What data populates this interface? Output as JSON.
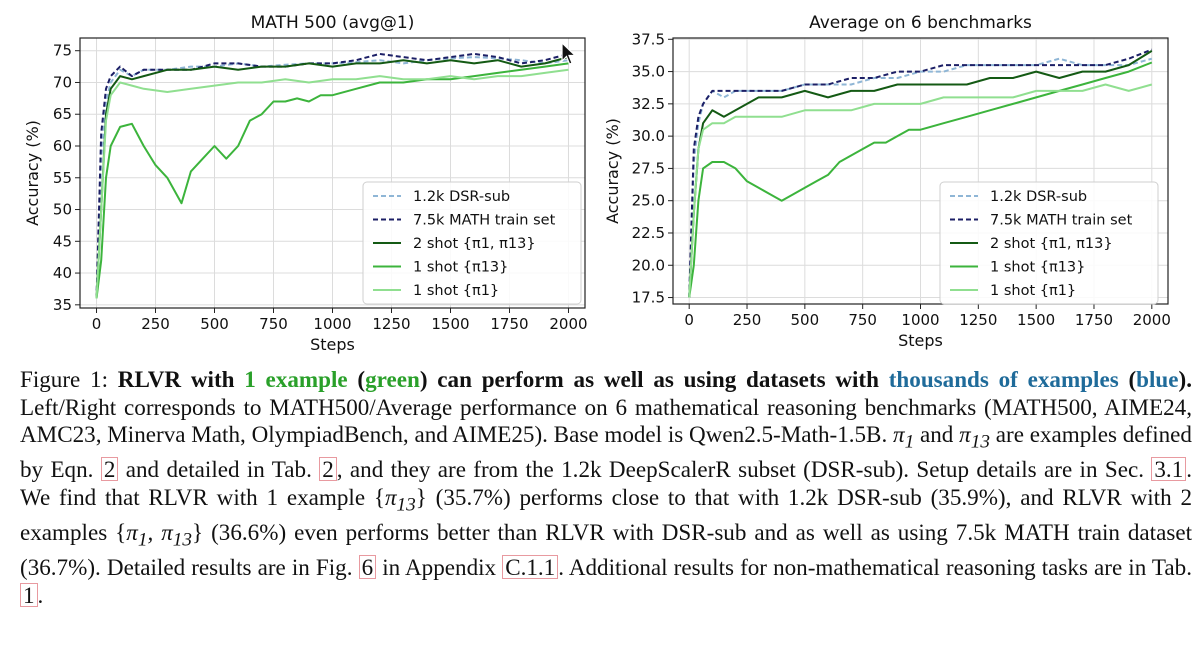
{
  "chart_data": [
    {
      "type": "line",
      "title": "MATH 500 (avg@1)",
      "xlabel": "Steps",
      "ylabel": "Accuracy (%)",
      "xlim": [
        -70,
        2070
      ],
      "ylim": [
        34.5,
        77
      ],
      "xticks": [
        0,
        250,
        500,
        750,
        1000,
        1250,
        1500,
        1750,
        2000
      ],
      "yticks": [
        35,
        40,
        45,
        50,
        55,
        60,
        65,
        70,
        75
      ],
      "grid": true,
      "legend": "lower-right",
      "series": [
        {
          "name": "1.2k DSR-sub",
          "color": "#8fb6d6",
          "dash": "dashed",
          "x": [
            0,
            20,
            40,
            60,
            100,
            150,
            200,
            300,
            400,
            500,
            600,
            700,
            800,
            900,
            1000,
            1100,
            1200,
            1300,
            1400,
            1500,
            1600,
            1700,
            1800,
            1900,
            2000
          ],
          "y": [
            36,
            58,
            67,
            70,
            72,
            71,
            72,
            72,
            72.5,
            72.5,
            73,
            72.5,
            72.8,
            73,
            73,
            73.2,
            73.5,
            73,
            73.5,
            73.8,
            74,
            73.8,
            73.5,
            73,
            73.5
          ]
        },
        {
          "name": "7.5k MATH train set",
          "color": "#1c1f66",
          "dash": "dashed",
          "x": [
            0,
            20,
            40,
            60,
            100,
            150,
            200,
            300,
            400,
            500,
            600,
            700,
            800,
            900,
            1000,
            1100,
            1200,
            1300,
            1400,
            1500,
            1600,
            1700,
            1800,
            1900,
            2000
          ],
          "y": [
            36,
            62,
            69,
            71,
            72.5,
            71,
            72,
            72,
            72,
            73,
            73,
            72.5,
            72.5,
            73,
            73,
            73.5,
            74.5,
            74,
            73.5,
            74,
            74.5,
            74,
            73,
            73.5,
            74.5
          ]
        },
        {
          "name": "2 shot {π1, π13}",
          "color": "#145a14",
          "dash": "solid",
          "x": [
            0,
            20,
            40,
            60,
            100,
            150,
            200,
            300,
            400,
            500,
            600,
            700,
            800,
            900,
            1000,
            1100,
            1200,
            1300,
            1400,
            1500,
            1600,
            1700,
            1800,
            1900,
            2000
          ],
          "y": [
            36,
            50,
            65,
            69,
            71,
            70.5,
            71,
            72,
            72,
            72.5,
            72,
            72.5,
            72.5,
            73,
            72.5,
            73,
            73,
            73.5,
            73,
            73.5,
            73,
            73.5,
            72.5,
            73,
            74
          ]
        },
        {
          "name": "1 shot {π13}",
          "color": "#3cb43c",
          "dash": "solid",
          "x": [
            0,
            20,
            40,
            60,
            100,
            150,
            200,
            250,
            300,
            360,
            400,
            450,
            500,
            550,
            600,
            650,
            700,
            750,
            800,
            850,
            900,
            950,
            1000,
            1100,
            1200,
            1300,
            1400,
            1500,
            1600,
            1700,
            1800,
            1900,
            2000
          ],
          "y": [
            36,
            42,
            55,
            60,
            63,
            63.5,
            60,
            57,
            55,
            51,
            56,
            58,
            60,
            58,
            60,
            64,
            65,
            67,
            67,
            67.5,
            67,
            68,
            68,
            69,
            70,
            70,
            70.5,
            70.5,
            71,
            71.5,
            72,
            72.5,
            73
          ]
        },
        {
          "name": "1 shot {π1}",
          "color": "#90df90",
          "dash": "solid",
          "x": [
            0,
            20,
            40,
            60,
            100,
            150,
            200,
            300,
            400,
            500,
            600,
            700,
            800,
            900,
            1000,
            1100,
            1200,
            1300,
            1400,
            1500,
            1600,
            1700,
            1800,
            1900,
            2000
          ],
          "y": [
            36,
            50,
            64,
            68,
            70,
            69.5,
            69,
            68.5,
            69,
            69.5,
            70,
            70,
            70.5,
            70,
            70.5,
            70.5,
            71,
            70.5,
            70.5,
            71,
            70.5,
            71,
            71,
            71.5,
            72
          ]
        }
      ]
    },
    {
      "type": "line",
      "title": "Average on 6 benchmarks",
      "xlabel": "Steps",
      "ylabel": "Accuracy (%)",
      "xlim": [
        -70,
        2070
      ],
      "ylim": [
        17,
        37.6
      ],
      "xticks": [
        0,
        250,
        500,
        750,
        1000,
        1250,
        1500,
        1750,
        2000
      ],
      "yticks": [
        17.5,
        20.0,
        22.5,
        25.0,
        27.5,
        30.0,
        32.5,
        35.0,
        37.5
      ],
      "grid": true,
      "legend": "lower-right",
      "series": [
        {
          "name": "1.2k DSR-sub",
          "color": "#8fb6d6",
          "dash": "dashed",
          "x": [
            0,
            20,
            40,
            60,
            100,
            150,
            200,
            300,
            400,
            500,
            600,
            700,
            800,
            900,
            1000,
            1100,
            1200,
            1300,
            1400,
            1500,
            1600,
            1700,
            1800,
            1900,
            2000
          ],
          "y": [
            17.5,
            28,
            31,
            32.5,
            33.5,
            33,
            33.5,
            33.5,
            33.5,
            34,
            34,
            34,
            34.5,
            34.5,
            35,
            35,
            35.5,
            35.5,
            35.5,
            35.5,
            36,
            35.5,
            35.5,
            35.5,
            36
          ]
        },
        {
          "name": "7.5k MATH train set",
          "color": "#1c1f66",
          "dash": "dashed",
          "x": [
            0,
            20,
            40,
            60,
            100,
            150,
            200,
            300,
            400,
            500,
            600,
            700,
            800,
            900,
            1000,
            1100,
            1200,
            1300,
            1400,
            1500,
            1600,
            1700,
            1800,
            1900,
            2000
          ],
          "y": [
            17.5,
            29,
            31.5,
            32.5,
            33.5,
            33.5,
            33.5,
            33.5,
            33.5,
            34,
            34,
            34.5,
            34.5,
            35,
            35,
            35.5,
            35.5,
            35.5,
            35.5,
            35.5,
            35.5,
            35.5,
            35.5,
            36,
            36.7
          ]
        },
        {
          "name": "2 shot {π1, π13}",
          "color": "#145a14",
          "dash": "solid",
          "x": [
            0,
            20,
            40,
            60,
            100,
            150,
            200,
            300,
            400,
            500,
            600,
            700,
            800,
            900,
            1000,
            1100,
            1200,
            1300,
            1400,
            1500,
            1600,
            1700,
            1800,
            1900,
            2000
          ],
          "y": [
            17.5,
            24,
            29,
            31,
            32,
            31.5,
            32,
            33,
            33,
            33.5,
            33,
            33.5,
            33.5,
            34,
            34,
            34,
            34,
            34.5,
            34.5,
            35,
            34.5,
            35,
            35,
            35.5,
            36.6
          ]
        },
        {
          "name": "1 shot {π13}",
          "color": "#3cb43c",
          "dash": "solid",
          "x": [
            0,
            20,
            40,
            60,
            100,
            150,
            200,
            250,
            300,
            350,
            400,
            450,
            500,
            550,
            600,
            650,
            700,
            750,
            800,
            850,
            900,
            950,
            1000,
            1100,
            1200,
            1300,
            1400,
            1500,
            1600,
            1700,
            1800,
            1900,
            2000
          ],
          "y": [
            17.5,
            20,
            25,
            27.5,
            28,
            28,
            27.5,
            26.5,
            26,
            25.5,
            25,
            25.5,
            26,
            26.5,
            27,
            28,
            28.5,
            29,
            29.5,
            29.5,
            30,
            30.5,
            30.5,
            31,
            31.5,
            32,
            32.5,
            33,
            33.5,
            34,
            34.5,
            35,
            35.7
          ]
        },
        {
          "name": "1 shot {π1}",
          "color": "#90df90",
          "dash": "solid",
          "x": [
            0,
            20,
            40,
            60,
            100,
            150,
            200,
            300,
            400,
            500,
            600,
            700,
            800,
            900,
            1000,
            1100,
            1200,
            1300,
            1400,
            1500,
            1600,
            1700,
            1800,
            1900,
            2000
          ],
          "y": [
            17.5,
            24,
            29,
            30.5,
            31,
            31,
            31.5,
            31.5,
            31.5,
            32,
            32,
            32,
            32.5,
            32.5,
            32.5,
            33,
            33,
            33,
            33,
            33.5,
            33.5,
            33.5,
            34,
            33.5,
            34
          ]
        }
      ]
    }
  ],
  "caption": {
    "figure_label": "Figure 1:",
    "bold_1": "RLVR with",
    "bold_green_1": "1 example",
    "bold_2": "(",
    "bold_green_2": "green",
    "bold_3": ") can perform as well as using datasets with",
    "bold_blue_1": "thousands of examples",
    "bold_4": "(",
    "bold_blue_2": "blue",
    "bold_5": ").",
    "text_1": "Left/Right corresponds to MATH500/Average performance on 6 mathematical reasoning benchmarks (MATH500, AIME24, AMC23, Minerva Math, OlympiadBench, and AIME25). Base model is Qwen2.5-Math-1.5B.",
    "pi1": "π",
    "pi1_sub": "1",
    "text_2": "and",
    "pi13": "π",
    "pi13_sub": "13",
    "text_3": "are examples defined by Eqn.",
    "ref_eqn": "2",
    "text_4": "and detailed in Tab.",
    "ref_tab2": "2",
    "text_5": ", and they are from the 1.2k DeepScalerR subset (DSR-sub). Setup details are in Sec.",
    "ref_sec": "3.1",
    "text_6": ". We find that RLVR with 1 example {",
    "text_6_pi": "π",
    "text_6_sub": "13",
    "text_7": "} (35.7%) performs close to that with 1.2k DSR-sub (35.9%), and RLVR with 2 examples {",
    "text_7_pi1": "π",
    "text_7_sub1": "1",
    "text_7_comma": ",",
    "text_7_pi2": "π",
    "text_7_sub2": "13",
    "text_8": "} (36.6%) even performs better than RLVR with DSR-sub and as well as using 7.5k MATH train dataset (36.7%). Detailed results are in Fig.",
    "ref_fig": "6",
    "text_9": "in Appendix",
    "ref_app": "C.1.1",
    "text_10": ". Additional results for non-mathematical reasoning tasks are in Tab.",
    "ref_tab1": "1",
    "text_11": "."
  }
}
